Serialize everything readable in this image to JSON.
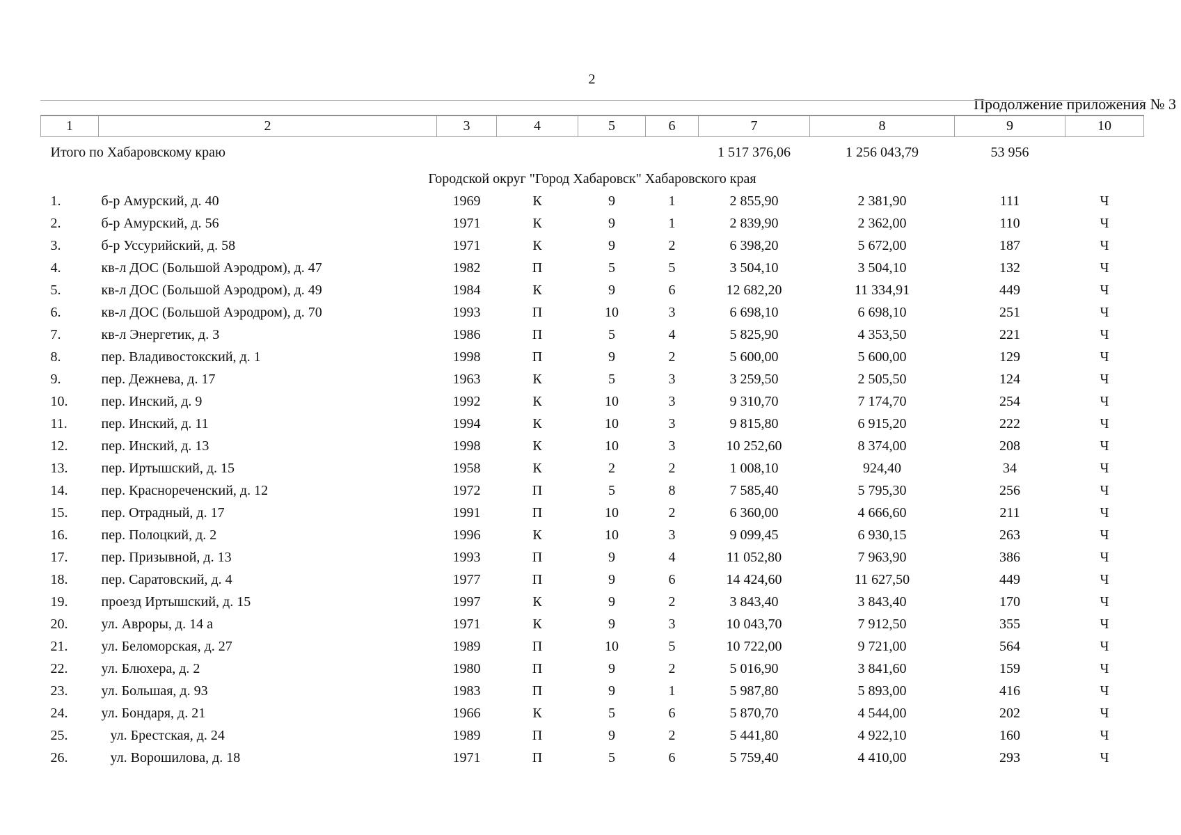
{
  "page": {
    "number": "2",
    "annotation": "Продолжение приложения № 3"
  },
  "table": {
    "column_numbers": [
      "1",
      "2",
      "3",
      "4",
      "5",
      "6",
      "7",
      "8",
      "9",
      "10"
    ],
    "total_row": {
      "label": "Итого по Хабаровскому краю",
      "col7": "1 517 376,06",
      "col8": "1 256 043,79",
      "col9": "53 956"
    },
    "section_title": "Городской округ \"Город Хабаровск\" Хабаровского края",
    "rows": [
      {
        "cells": [
          "1.",
          "б-р Амурский, д. 40",
          "1969",
          "К",
          "9",
          "1",
          "2 855,90",
          "2 381,90",
          "111",
          "Ч"
        ]
      },
      {
        "cells": [
          "2.",
          "б-р Амурский, д. 56",
          "1971",
          "К",
          "9",
          "1",
          "2 839,90",
          "2 362,00",
          "110",
          "Ч"
        ]
      },
      {
        "cells": [
          "3.",
          "б-р Уссурийский, д. 58",
          "1971",
          "К",
          "9",
          "2",
          "6 398,20",
          "5 672,00",
          "187",
          "Ч"
        ]
      },
      {
        "cells": [
          "4.",
          "кв-л ДОС (Большой Аэродром), д. 47",
          "1982",
          "П",
          "5",
          "5",
          "3 504,10",
          "3 504,10",
          "132",
          "Ч"
        ]
      },
      {
        "cells": [
          "5.",
          "кв-л ДОС (Большой Аэродром), д. 49",
          "1984",
          "К",
          "9",
          "6",
          "12 682,20",
          "11 334,91",
          "449",
          "Ч"
        ]
      },
      {
        "cells": [
          "6.",
          "кв-л ДОС (Большой Аэродром), д. 70",
          "1993",
          "П",
          "10",
          "3",
          "6 698,10",
          "6 698,10",
          "251",
          "Ч"
        ]
      },
      {
        "cells": [
          "7.",
          "кв-л Энергетик, д. 3",
          "1986",
          "П",
          "5",
          "4",
          "5 825,90",
          "4 353,50",
          "221",
          "Ч"
        ]
      },
      {
        "cells": [
          "8.",
          "пер. Владивостокский, д. 1",
          "1998",
          "П",
          "9",
          "2",
          "5 600,00",
          "5 600,00",
          "129",
          "Ч"
        ]
      },
      {
        "cells": [
          "9.",
          "пер. Дежнева, д. 17",
          "1963",
          "К",
          "5",
          "3",
          "3 259,50",
          "2 505,50",
          "124",
          "Ч"
        ]
      },
      {
        "cells": [
          "10.",
          "пер. Инский, д. 9",
          "1992",
          "К",
          "10",
          "3",
          "9 310,70",
          "7 174,70",
          "254",
          "Ч"
        ]
      },
      {
        "cells": [
          "11.",
          "пер. Инский, д. 11",
          "1994",
          "К",
          "10",
          "3",
          "9 815,80",
          "6 915,20",
          "222",
          "Ч"
        ]
      },
      {
        "cells": [
          "12.",
          "пер. Инский, д. 13",
          "1998",
          "К",
          "10",
          "3",
          "10 252,60",
          "8 374,00",
          "208",
          "Ч"
        ]
      },
      {
        "cells": [
          "13.",
          "пер. Иртышский, д. 15",
          "1958",
          "К",
          "2",
          "2",
          "1 008,10",
          "924,40",
          "34",
          "Ч"
        ]
      },
      {
        "cells": [
          "14.",
          "пер. Краснореченский, д. 12",
          "1972",
          "П",
          "5",
          "8",
          "7 585,40",
          "5 795,30",
          "256",
          "Ч"
        ]
      },
      {
        "cells": [
          "15.",
          "пер. Отрадный, д. 17",
          "1991",
          "П",
          "10",
          "2",
          "6 360,00",
          "4 666,60",
          "211",
          "Ч"
        ]
      },
      {
        "cells": [
          "16.",
          "пер. Полоцкий, д. 2",
          "1996",
          "К",
          "10",
          "3",
          "9 099,45",
          "6 930,15",
          "263",
          "Ч"
        ]
      },
      {
        "cells": [
          "17.",
          "пер. Призывной, д. 13",
          "1993",
          "П",
          "9",
          "4",
          "11 052,80",
          "7 963,90",
          "386",
          "Ч"
        ]
      },
      {
        "cells": [
          "18.",
          "пер. Саратовский, д. 4",
          "1977",
          "П",
          "9",
          "6",
          "14 424,60",
          "11 627,50",
          "449",
          "Ч"
        ]
      },
      {
        "cells": [
          "19.",
          "проезд Иртышский, д. 15",
          "1997",
          "К",
          "9",
          "2",
          "3 843,40",
          "3 843,40",
          "170",
          "Ч"
        ]
      },
      {
        "cells": [
          "20.",
          "ул. Авроры, д. 14 а",
          "1971",
          "К",
          "9",
          "3",
          "10 043,70",
          "7 912,50",
          "355",
          "Ч"
        ]
      },
      {
        "cells": [
          "21.",
          "ул. Беломорская, д. 27",
          "1989",
          "П",
          "10",
          "5",
          "10 722,00",
          "9 721,00",
          "564",
          "Ч"
        ]
      },
      {
        "cells": [
          "22.",
          "ул. Блюхера, д. 2",
          "1980",
          "П",
          "9",
          "2",
          "5 016,90",
          "3 841,60",
          "159",
          "Ч"
        ]
      },
      {
        "cells": [
          "23.",
          "ул. Большая, д. 93",
          "1983",
          "П",
          "9",
          "1",
          "5 987,80",
          "5 893,00",
          "416",
          "Ч"
        ]
      },
      {
        "cells": [
          "24.",
          "ул. Бондаря, д. 21",
          "1966",
          "К",
          "5",
          "6",
          "5 870,70",
          "4 544,00",
          "202",
          "Ч"
        ]
      },
      {
        "cells": [
          "25.",
          "ул. Брестская, д. 24",
          "1989",
          "П",
          "9",
          "2",
          "5 441,80",
          "4 922,10",
          "160",
          "Ч"
        ],
        "indent": true
      },
      {
        "cells": [
          "26.",
          "ул. Ворошилова, д. 18",
          "1971",
          "П",
          "5",
          "6",
          "5 759,40",
          "4 410,00",
          "293",
          "Ч"
        ],
        "indent": true
      }
    ]
  }
}
